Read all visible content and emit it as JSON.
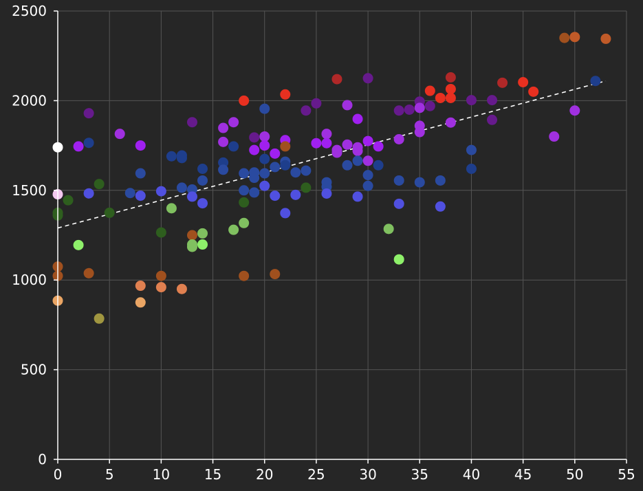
{
  "chart_data": {
    "type": "scatter",
    "title": "",
    "xlabel": "",
    "ylabel": "",
    "xlim": [
      0,
      55
    ],
    "ylim": [
      0,
      2500
    ],
    "x_ticks": [
      0,
      5,
      10,
      15,
      20,
      25,
      30,
      35,
      40,
      45,
      50,
      55
    ],
    "y_ticks": [
      0,
      500,
      1000,
      1500,
      2000,
      2500
    ],
    "grid": true,
    "legend": "none",
    "trend_line": {
      "style": "dashed",
      "color": "#ffffff",
      "from": [
        0,
        1290
      ],
      "to": [
        53,
        2110
      ]
    },
    "points": [
      {
        "x": 0,
        "y": 1740,
        "color": "#ffffff"
      },
      {
        "x": 0,
        "y": 1478,
        "color": "#f4c8f0"
      },
      {
        "x": 0,
        "y": 1375,
        "color": "#2e5e1e"
      },
      {
        "x": 0,
        "y": 1360,
        "color": "#2e5e1e"
      },
      {
        "x": 0,
        "y": 1075,
        "color": "#a0501e"
      },
      {
        "x": 0,
        "y": 1023,
        "color": "#a0501e"
      },
      {
        "x": 0,
        "y": 885,
        "color": "#eaa564"
      },
      {
        "x": 1,
        "y": 1445,
        "color": "#2e5e1e"
      },
      {
        "x": 2,
        "y": 1745,
        "color": "#a020f0"
      },
      {
        "x": 2,
        "y": 1195,
        "color": "#8ef06a"
      },
      {
        "x": 3,
        "y": 1930,
        "color": "#661a8c"
      },
      {
        "x": 3,
        "y": 1765,
        "color": "#1e3e8c"
      },
      {
        "x": 3,
        "y": 1483,
        "color": "#5050e0"
      },
      {
        "x": 3,
        "y": 1038,
        "color": "#a0501e"
      },
      {
        "x": 4,
        "y": 1535,
        "color": "#2e5e1e"
      },
      {
        "x": 4,
        "y": 785,
        "color": "#a09640"
      },
      {
        "x": 5,
        "y": 1375,
        "color": "#2e5e1e"
      },
      {
        "x": 6,
        "y": 1815,
        "color": "#a030e0"
      },
      {
        "x": 7,
        "y": 1485,
        "color": "#2a4aa0"
      },
      {
        "x": 8,
        "y": 1750,
        "color": "#a020f0"
      },
      {
        "x": 8,
        "y": 1595,
        "color": "#2a4aa0"
      },
      {
        "x": 8,
        "y": 1470,
        "color": "#5050e0"
      },
      {
        "x": 8,
        "y": 968,
        "color": "#e08050"
      },
      {
        "x": 8,
        "y": 875,
        "color": "#eaa564"
      },
      {
        "x": 10,
        "y": 1495,
        "color": "#5050e0"
      },
      {
        "x": 10,
        "y": 1265,
        "color": "#2e5e1e"
      },
      {
        "x": 10,
        "y": 1023,
        "color": "#a0501e"
      },
      {
        "x": 10,
        "y": 960,
        "color": "#e08050"
      },
      {
        "x": 11,
        "y": 1400,
        "color": "#80c060"
      },
      {
        "x": 11,
        "y": 1690,
        "color": "#1e3e8c"
      },
      {
        "x": 12,
        "y": 1695,
        "color": "#1e3e8c"
      },
      {
        "x": 12,
        "y": 1680,
        "color": "#1e3e8c"
      },
      {
        "x": 12,
        "y": 1515,
        "color": "#2a4aa0"
      },
      {
        "x": 12,
        "y": 950,
        "color": "#e08050"
      },
      {
        "x": 13,
        "y": 1880,
        "color": "#661a8c"
      },
      {
        "x": 13,
        "y": 1505,
        "color": "#2a4aa0"
      },
      {
        "x": 13,
        "y": 1465,
        "color": "#5050e0"
      },
      {
        "x": 13,
        "y": 1250,
        "color": "#a0501e"
      },
      {
        "x": 13,
        "y": 1198,
        "color": "#80c060"
      },
      {
        "x": 13,
        "y": 1185,
        "color": "#80c060"
      },
      {
        "x": 14,
        "y": 1620,
        "color": "#1e3e8c"
      },
      {
        "x": 14,
        "y": 1555,
        "color": "#2a4aa0"
      },
      {
        "x": 14,
        "y": 1428,
        "color": "#5050e0"
      },
      {
        "x": 14,
        "y": 1260,
        "color": "#80c060"
      },
      {
        "x": 14,
        "y": 1198,
        "color": "#8ef06a"
      },
      {
        "x": 16,
        "y": 1848,
        "color": "#a030e0"
      },
      {
        "x": 16,
        "y": 1770,
        "color": "#a030e0"
      },
      {
        "x": 16,
        "y": 1655,
        "color": "#1e3e8c"
      },
      {
        "x": 16,
        "y": 1615,
        "color": "#2a4aa0"
      },
      {
        "x": 17,
        "y": 1880,
        "color": "#a030e0"
      },
      {
        "x": 17,
        "y": 1745,
        "color": "#1e3e8c"
      },
      {
        "x": 17,
        "y": 1280,
        "color": "#80c060"
      },
      {
        "x": 18,
        "y": 2000,
        "color": "#e83020"
      },
      {
        "x": 18,
        "y": 1595,
        "color": "#2a4aa0"
      },
      {
        "x": 18,
        "y": 1500,
        "color": "#2a4aa0"
      },
      {
        "x": 18,
        "y": 1433,
        "color": "#2e5e1e"
      },
      {
        "x": 18,
        "y": 1318,
        "color": "#80c060"
      },
      {
        "x": 18,
        "y": 1023,
        "color": "#a0501e"
      },
      {
        "x": 19,
        "y": 1795,
        "color": "#661a8c"
      },
      {
        "x": 19,
        "y": 1725,
        "color": "#a020f0"
      },
      {
        "x": 19,
        "y": 1600,
        "color": "#2a4aa0"
      },
      {
        "x": 19,
        "y": 1570,
        "color": "#2a4aa0"
      },
      {
        "x": 19,
        "y": 1488,
        "color": "#2a4aa0"
      },
      {
        "x": 20,
        "y": 1955,
        "color": "#2a4aa0"
      },
      {
        "x": 20,
        "y": 1800,
        "color": "#a030e0"
      },
      {
        "x": 20,
        "y": 1750,
        "color": "#a020f0"
      },
      {
        "x": 20,
        "y": 1675,
        "color": "#1e3e8c"
      },
      {
        "x": 20,
        "y": 1595,
        "color": "#2a4aa0"
      },
      {
        "x": 20,
        "y": 1525,
        "color": "#5050e0"
      },
      {
        "x": 21,
        "y": 1705,
        "color": "#a020f0"
      },
      {
        "x": 21,
        "y": 1630,
        "color": "#2a4aa0"
      },
      {
        "x": 21,
        "y": 1470,
        "color": "#5050e0"
      },
      {
        "x": 21,
        "y": 1033,
        "color": "#a0501e"
      },
      {
        "x": 22,
        "y": 2035,
        "color": "#e83020"
      },
      {
        "x": 22,
        "y": 1780,
        "color": "#a020f0"
      },
      {
        "x": 22,
        "y": 1745,
        "color": "#a0501e"
      },
      {
        "x": 22,
        "y": 1660,
        "color": "#2a4aa0"
      },
      {
        "x": 22,
        "y": 1640,
        "color": "#1e3e8c"
      },
      {
        "x": 22,
        "y": 1373,
        "color": "#5050e0"
      },
      {
        "x": 23,
        "y": 1600,
        "color": "#2a4aa0"
      },
      {
        "x": 23,
        "y": 1475,
        "color": "#5050e0"
      },
      {
        "x": 24,
        "y": 1945,
        "color": "#661a8c"
      },
      {
        "x": 24,
        "y": 1610,
        "color": "#2a4aa0"
      },
      {
        "x": 24,
        "y": 1515,
        "color": "#2e5e1e"
      },
      {
        "x": 25,
        "y": 1985,
        "color": "#661a8c"
      },
      {
        "x": 25,
        "y": 1763,
        "color": "#a020f0"
      },
      {
        "x": 26,
        "y": 1815,
        "color": "#a030e0"
      },
      {
        "x": 26,
        "y": 1763,
        "color": "#a020f0"
      },
      {
        "x": 26,
        "y": 1545,
        "color": "#2a4aa0"
      },
      {
        "x": 26,
        "y": 1520,
        "color": "#2a4aa0"
      },
      {
        "x": 26,
        "y": 1482,
        "color": "#5050e0"
      },
      {
        "x": 27,
        "y": 2120,
        "color": "#b02828"
      },
      {
        "x": 27,
        "y": 1725,
        "color": "#a030e0"
      },
      {
        "x": 27,
        "y": 1710,
        "color": "#a030e0"
      },
      {
        "x": 28,
        "y": 1975,
        "color": "#a030e0"
      },
      {
        "x": 28,
        "y": 1755,
        "color": "#a030e0"
      },
      {
        "x": 28,
        "y": 1640,
        "color": "#2a4aa0"
      },
      {
        "x": 29,
        "y": 1898,
        "color": "#a020f0"
      },
      {
        "x": 29,
        "y": 1740,
        "color": "#a030e0"
      },
      {
        "x": 29,
        "y": 1720,
        "color": "#a030e0"
      },
      {
        "x": 29,
        "y": 1665,
        "color": "#2a4aa0"
      },
      {
        "x": 29,
        "y": 1465,
        "color": "#5050e0"
      },
      {
        "x": 30,
        "y": 2125,
        "color": "#661a8c"
      },
      {
        "x": 30,
        "y": 1775,
        "color": "#a020f0"
      },
      {
        "x": 30,
        "y": 1665,
        "color": "#a030e0"
      },
      {
        "x": 30,
        "y": 1585,
        "color": "#2a4aa0"
      },
      {
        "x": 30,
        "y": 1525,
        "color": "#2a4aa0"
      },
      {
        "x": 31,
        "y": 1745,
        "color": "#a020f0"
      },
      {
        "x": 31,
        "y": 1640,
        "color": "#1e3e8c"
      },
      {
        "x": 32,
        "y": 1285,
        "color": "#80c060"
      },
      {
        "x": 33,
        "y": 1945,
        "color": "#661a8c"
      },
      {
        "x": 33,
        "y": 1785,
        "color": "#a030e0"
      },
      {
        "x": 33,
        "y": 1555,
        "color": "#2a4aa0"
      },
      {
        "x": 33,
        "y": 1425,
        "color": "#5050e0"
      },
      {
        "x": 33,
        "y": 1115,
        "color": "#8ef06a"
      },
      {
        "x": 34,
        "y": 1950,
        "color": "#661a8c"
      },
      {
        "x": 35,
        "y": 1995,
        "color": "#661a8c"
      },
      {
        "x": 35,
        "y": 1960,
        "color": "#a030e0"
      },
      {
        "x": 35,
        "y": 1860,
        "color": "#a030e0"
      },
      {
        "x": 35,
        "y": 1825,
        "color": "#a030e0"
      },
      {
        "x": 35,
        "y": 1545,
        "color": "#2a4aa0"
      },
      {
        "x": 36,
        "y": 2055,
        "color": "#e83020"
      },
      {
        "x": 36,
        "y": 1970,
        "color": "#661a8c"
      },
      {
        "x": 37,
        "y": 2015,
        "color": "#e83020"
      },
      {
        "x": 37,
        "y": 1555,
        "color": "#2a4aa0"
      },
      {
        "x": 37,
        "y": 1410,
        "color": "#5050e0"
      },
      {
        "x": 38,
        "y": 2130,
        "color": "#b02828"
      },
      {
        "x": 38,
        "y": 2065,
        "color": "#e83020"
      },
      {
        "x": 38,
        "y": 2015,
        "color": "#e83020"
      },
      {
        "x": 38,
        "y": 1878,
        "color": "#a030e0"
      },
      {
        "x": 40,
        "y": 2003,
        "color": "#661a8c"
      },
      {
        "x": 40,
        "y": 1725,
        "color": "#2a4aa0"
      },
      {
        "x": 40,
        "y": 1620,
        "color": "#1e3e8c"
      },
      {
        "x": 42,
        "y": 2003,
        "color": "#661a8c"
      },
      {
        "x": 42,
        "y": 1893,
        "color": "#661a8c"
      },
      {
        "x": 43,
        "y": 2100,
        "color": "#b02828"
      },
      {
        "x": 45,
        "y": 2103,
        "color": "#e83020"
      },
      {
        "x": 46,
        "y": 2050,
        "color": "#e83020"
      },
      {
        "x": 48,
        "y": 1800,
        "color": "#a030e0"
      },
      {
        "x": 49,
        "y": 2350,
        "color": "#a0501e"
      },
      {
        "x": 50,
        "y": 2355,
        "color": "#c05a28"
      },
      {
        "x": 50,
        "y": 1945,
        "color": "#a030e0"
      },
      {
        "x": 52,
        "y": 2110,
        "color": "#1e3e8c"
      },
      {
        "x": 53,
        "y": 2345,
        "color": "#c05a28"
      }
    ]
  }
}
